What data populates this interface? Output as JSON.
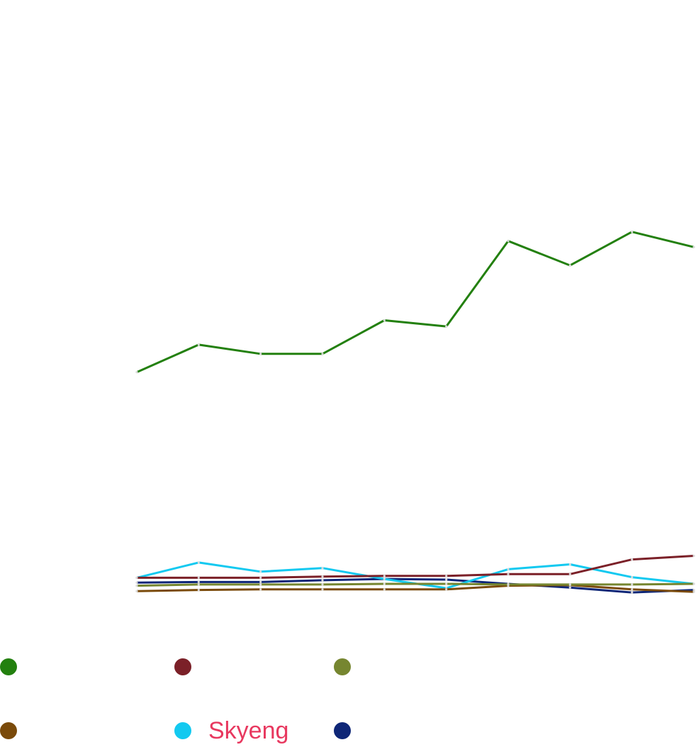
{
  "chart_data": {
    "type": "line",
    "title": "",
    "xlabel": "",
    "ylabel": "",
    "x": [
      1,
      2,
      3,
      4,
      5,
      6,
      7,
      8,
      9,
      10
    ],
    "ylim": [
      0,
      100
    ],
    "grid": false,
    "legend_position": "bottom",
    "series": [
      {
        "name": "",
        "color": "#23800f",
        "values": [
          39.0,
          43.5,
          42.0,
          42.0,
          47.5,
          46.5,
          60.5,
          56.5,
          62.0,
          59.5
        ]
      },
      {
        "name": "",
        "color": "#7b2028",
        "values": [
          5.3,
          5.3,
          5.3,
          5.5,
          5.6,
          5.6,
          5.9,
          5.9,
          8.3,
          8.9
        ]
      },
      {
        "name": "",
        "color": "#768630",
        "values": [
          4.0,
          4.2,
          4.2,
          4.2,
          4.3,
          4.3,
          4.2,
          4.2,
          4.2,
          4.3
        ]
      },
      {
        "name": "",
        "color": "#7a4a0a",
        "values": [
          3.1,
          3.3,
          3.4,
          3.4,
          3.4,
          3.4,
          4.0,
          4.1,
          3.4,
          3.0
        ]
      },
      {
        "name": "Skyeng",
        "color": "#13c9f0",
        "values": [
          5.3,
          7.8,
          6.3,
          6.9,
          5.1,
          3.6,
          6.7,
          7.5,
          5.4,
          4.3
        ]
      },
      {
        "name": "",
        "color": "#0e2677",
        "values": [
          4.5,
          4.6,
          4.6,
          4.9,
          5.1,
          5.0,
          4.3,
          3.7,
          2.9,
          3.3
        ]
      }
    ]
  }
}
